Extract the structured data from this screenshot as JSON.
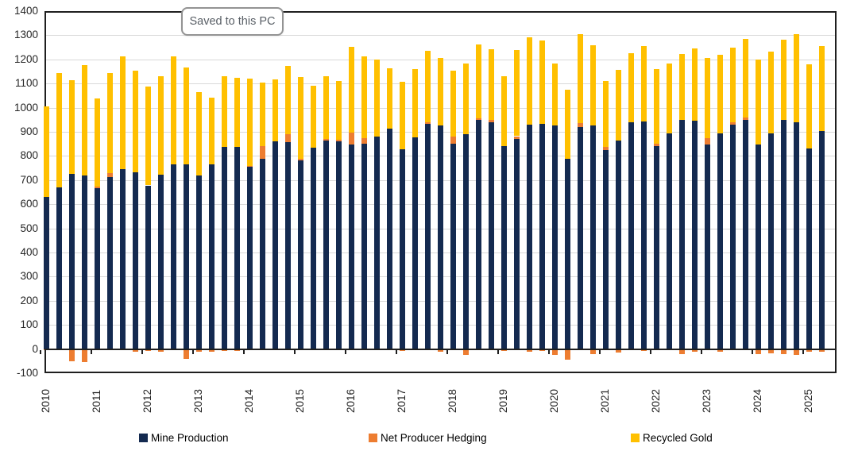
{
  "tooltip": {
    "text": "Saved to this PC"
  },
  "colors": {
    "mine": "#142a50",
    "hedge": "#ed7d31",
    "recycled": "#ffc000",
    "gridline": "#d9d9d9",
    "axis": "#1f1f1f",
    "tick_label": "#262626",
    "tooltip_border": "#939393",
    "tooltip_text": "#595f66"
  },
  "chart_data": {
    "type": "bar",
    "stacked": true,
    "grid": true,
    "legend_position": "bottom",
    "ylim": [
      -100,
      1400
    ],
    "y_tick_step": 100,
    "y_tick_labels": [
      "1400",
      "1300",
      "1200",
      "1100",
      "1000",
      "900",
      "800",
      "700",
      "600",
      "500",
      "400",
      "300",
      "200",
      "100",
      "0",
      "-100"
    ],
    "x_tick_labels": [
      "2010",
      "2011",
      "2012",
      "2013",
      "2014",
      "2015",
      "2016",
      "2017",
      "2018",
      "2019",
      "2020",
      "2021",
      "2022",
      "2023",
      "2024",
      "2025"
    ],
    "categories": [
      "2010 Q1",
      "2010 Q2",
      "2010 Q3",
      "2010 Q4",
      "2011 Q1",
      "2011 Q2",
      "2011 Q3",
      "2011 Q4",
      "2012 Q1",
      "2012 Q2",
      "2012 Q3",
      "2012 Q4",
      "2013 Q1",
      "2013 Q2",
      "2013 Q3",
      "2013 Q4",
      "2014 Q1",
      "2014 Q2",
      "2014 Q3",
      "2014 Q4",
      "2015 Q1",
      "2015 Q2",
      "2015 Q3",
      "2015 Q4",
      "2016 Q1",
      "2016 Q2",
      "2016 Q3",
      "2016 Q4",
      "2017 Q1",
      "2017 Q2",
      "2017 Q3",
      "2017 Q4",
      "2018 Q1",
      "2018 Q2",
      "2018 Q3",
      "2018 Q4",
      "2019 Q1",
      "2019 Q2",
      "2019 Q3",
      "2019 Q4",
      "2020 Q1",
      "2020 Q2",
      "2020 Q3",
      "2020 Q4",
      "2021 Q1",
      "2021 Q2",
      "2021 Q3",
      "2021 Q4",
      "2022 Q1",
      "2022 Q2",
      "2022 Q3",
      "2022 Q4",
      "2023 Q1",
      "2023 Q2",
      "2023 Q3",
      "2023 Q4",
      "2024 Q1",
      "2024 Q2",
      "2024 Q3",
      "2024 Q4",
      "2025 Q1",
      "2025 Q2"
    ],
    "series": [
      {
        "name": "Mine Production",
        "color_key": "mine",
        "values": [
          630,
          670,
          726,
          718,
          666,
          714,
          745,
          731,
          678,
          722,
          764,
          765,
          719,
          765,
          837,
          837,
          754,
          787,
          860,
          858,
          782,
          834,
          863,
          860,
          847,
          852,
          879,
          914,
          829,
          878,
          932,
          928,
          852,
          890,
          949,
          940,
          842,
          872,
          929,
          932,
          925,
          788,
          921,
          926,
          824,
          863,
          938,
          943,
          840,
          892,
          949,
          947,
          848,
          892,
          930,
          949,
          846,
          894,
          950,
          938,
          832,
          903
        ]
      },
      {
        "name": "Net Producer Hedging",
        "color_key": "hedge",
        "values": [
          -5,
          0,
          -52,
          -55,
          6,
          16,
          0,
          -10,
          -8,
          -10,
          0,
          -40,
          -12,
          -10,
          -8,
          -8,
          6,
          55,
          -5,
          33,
          6,
          -5,
          8,
          8,
          49,
          22,
          -5,
          -5,
          -8,
          -5,
          8,
          -10,
          27,
          -25,
          8,
          8,
          -8,
          10,
          -10,
          -8,
          -25,
          -43,
          15,
          -20,
          13,
          -15,
          -6,
          -8,
          12,
          -5,
          -20,
          -12,
          27,
          -10,
          10,
          11,
          -20,
          -18,
          -20,
          -25,
          -12,
          -10
        ]
      },
      {
        "name": "Recycled Gold",
        "color_key": "recycled",
        "values": [
          375,
          475,
          389,
          460,
          365,
          414,
          469,
          423,
          411,
          409,
          450,
          400,
          347,
          275,
          295,
          288,
          362,
          263,
          258,
          283,
          340,
          256,
          260,
          243,
          355,
          339,
          321,
          248,
          279,
          282,
          296,
          278,
          276,
          294,
          305,
          294,
          287,
          357,
          362,
          347,
          259,
          286,
          368,
          332,
          274,
          293,
          287,
          312,
          308,
          292,
          273,
          297,
          332,
          328,
          308,
          325,
          352,
          337,
          332,
          367,
          349,
          354
        ]
      }
    ]
  }
}
